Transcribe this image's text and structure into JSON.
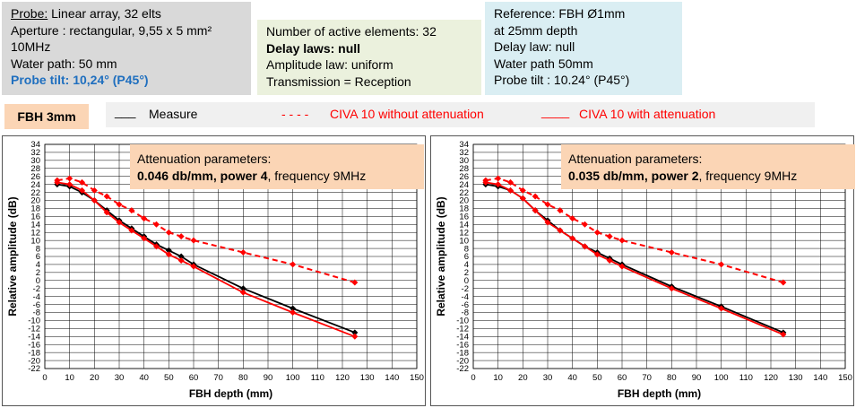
{
  "probe": {
    "label": "Probe:",
    "label_rest": " Linear array, 32 elts",
    "aperture": "Aperture : rectangular, 9,55 x 5 mm²",
    "frequency": "10MHz",
    "water_path": "Water path: 50 mm",
    "tilt": "Probe tilt: 10,24° (P45°)"
  },
  "elements": {
    "active": "Number of active elements: 32",
    "delay": "Delay laws: null",
    "amplitude": "Amplitude law: uniform",
    "transmission": "Transmission = Reception"
  },
  "reference": {
    "line1": "Reference: FBH Ø1mm",
    "line2": "at 25mm  depth",
    "line3": "Delay law: null",
    "line4": "Water path 50mm",
    "line5": "Probe tilt : 10.24° (P45°)"
  },
  "tag": "FBH 3mm",
  "legend": {
    "measure_mark": "___",
    "measure": "Measure",
    "civa_no_att_mark": "- - - -",
    "civa_no_att": "CIVA 10 without attenuation",
    "civa_att_mark": "____",
    "civa_att": "CIVA 10 with attenuation"
  },
  "colors": {
    "measure": "#000000",
    "civa": "#ff0000",
    "grid": "#000000"
  },
  "chart_data": [
    {
      "type": "line",
      "xlabel": "FBH depth (mm)",
      "ylabel": "Relative amplitude (dB)",
      "xlim": [
        0,
        150
      ],
      "xticks": [
        0,
        10,
        20,
        30,
        40,
        50,
        60,
        70,
        80,
        90,
        100,
        110,
        120,
        130,
        140,
        150
      ],
      "ylim": [
        -22,
        34
      ],
      "ystep": 2,
      "annotation": {
        "title": "Attenuation parameters:",
        "bold": "0.046 db/mm, power 4",
        "rest": ", frequency 9MHz"
      },
      "series": [
        {
          "name": "Measure",
          "style": "solid",
          "color": "#000000",
          "x": [
            5,
            10,
            15,
            20,
            25,
            30,
            35,
            40,
            45,
            50,
            55,
            60,
            80,
            100,
            125
          ],
          "y": [
            24,
            23.5,
            22,
            20,
            17.5,
            15,
            13,
            11,
            9,
            7.5,
            6,
            4,
            -2,
            -7,
            -13
          ]
        },
        {
          "name": "CIVA 10 without attenuation",
          "style": "dashed",
          "color": "#ff0000",
          "x": [
            5,
            10,
            15,
            20,
            25,
            30,
            35,
            40,
            45,
            50,
            55,
            60,
            80,
            100,
            125
          ],
          "y": [
            25,
            25.5,
            24.5,
            22.5,
            21,
            19,
            17.5,
            15.5,
            14,
            12,
            11,
            10,
            7,
            4,
            -0.5
          ]
        },
        {
          "name": "CIVA 10 with attenuation",
          "style": "solid",
          "color": "#ff0000",
          "x": [
            5,
            10,
            15,
            20,
            25,
            30,
            35,
            40,
            45,
            50,
            55,
            60,
            80,
            100,
            125
          ],
          "y": [
            24.5,
            24,
            22.5,
            20,
            17,
            14.5,
            12.5,
            10.5,
            8.5,
            6.5,
            5,
            3.5,
            -3,
            -8,
            -14
          ]
        }
      ]
    },
    {
      "type": "line",
      "xlabel": "FBH depth (mm)",
      "ylabel": "Relative amplitude (dB)",
      "xlim": [
        0,
        150
      ],
      "xticks": [
        0,
        10,
        20,
        30,
        40,
        50,
        60,
        70,
        80,
        90,
        100,
        110,
        120,
        130,
        140,
        150
      ],
      "ylim": [
        -22,
        34
      ],
      "ystep": 2,
      "annotation": {
        "title": "Attenuation parameters:",
        "bold": "0.035 db/mm, power 2",
        "rest": ", frequency 9MHz"
      },
      "series": [
        {
          "name": "Measure",
          "style": "solid",
          "color": "#000000",
          "x": [
            5,
            10,
            15,
            20,
            25,
            30,
            35,
            40,
            45,
            50,
            55,
            60,
            80,
            100,
            125
          ],
          "y": [
            24,
            23.5,
            22.5,
            20.5,
            17.5,
            15,
            12.5,
            10.5,
            8.5,
            7,
            5.5,
            4,
            -1.5,
            -6.5,
            -13
          ]
        },
        {
          "name": "CIVA 10 without attenuation",
          "style": "dashed",
          "color": "#ff0000",
          "x": [
            5,
            10,
            15,
            20,
            25,
            30,
            35,
            40,
            45,
            50,
            55,
            60,
            80,
            100,
            125
          ],
          "y": [
            25,
            25.5,
            24.5,
            22.5,
            21,
            19,
            17.5,
            15.5,
            14,
            12,
            11,
            10,
            7,
            4,
            -0.5
          ]
        },
        {
          "name": "CIVA 10 with attenuation",
          "style": "solid",
          "color": "#ff0000",
          "x": [
            5,
            10,
            15,
            20,
            25,
            30,
            35,
            40,
            45,
            50,
            55,
            60,
            80,
            100,
            125
          ],
          "y": [
            24.5,
            24,
            22.5,
            20.5,
            17.5,
            14.5,
            12.5,
            10.5,
            8.5,
            6.5,
            5,
            3.5,
            -2,
            -7,
            -13.5
          ]
        }
      ]
    }
  ]
}
